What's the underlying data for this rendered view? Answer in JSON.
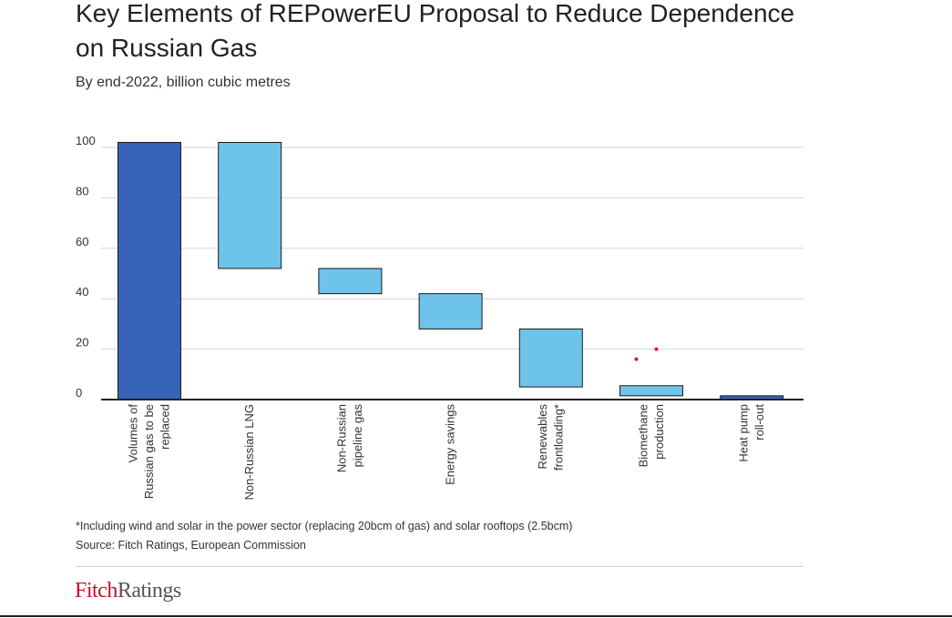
{
  "title": "Key Elements of REPowerEU Proposal to Reduce Dependence on Russian Gas",
  "subtitle": "By end-2022, billion cubic metres",
  "chart_data": {
    "type": "bar",
    "subtype": "waterfall",
    "ylim": [
      0,
      100
    ],
    "yticks": [
      "0",
      "20",
      "40",
      "60",
      "80",
      "100"
    ],
    "grid": true,
    "categories": [
      [
        "Volumes of",
        "Russian gas to be",
        "replaced"
      ],
      [
        "Non-Russian LNG"
      ],
      [
        "Non-Russian",
        "pipeline gas"
      ],
      [
        "Energy savings"
      ],
      [
        "Renewables",
        "frontloading*"
      ],
      [
        "Biomethane",
        "production"
      ],
      [
        "Heat pump",
        "roll-out"
      ]
    ],
    "bars": [
      {
        "from": 0,
        "to": 102,
        "color": "#3763b8"
      },
      {
        "from": 52,
        "to": 102,
        "color": "#6ec3ea"
      },
      {
        "from": 42,
        "to": 52,
        "color": "#6ec3ea"
      },
      {
        "from": 28,
        "to": 42,
        "color": "#6ec3ea"
      },
      {
        "from": 5,
        "to": 28,
        "color": "#6ec3ea"
      },
      {
        "from": 1.5,
        "to": 5.5,
        "color": "#6ec3ea"
      },
      {
        "from": 0,
        "to": 1.5,
        "color": "#3763b8"
      }
    ],
    "annotations": [
      {
        "x_category": 5,
        "x_offset": -0.15,
        "y": 16,
        "color": "#e8141b"
      },
      {
        "x_category": 5,
        "x_offset": 0.05,
        "y": 20,
        "color": "#e8141b"
      }
    ]
  },
  "footnote": "*Including wind and solar in the power sector (replacing 20bcm of gas) and solar rooftops (2.5bcm)",
  "source": "Source: Fitch Ratings, European Commission",
  "logo": {
    "part1": "Fitch",
    "part2": "Ratings"
  }
}
